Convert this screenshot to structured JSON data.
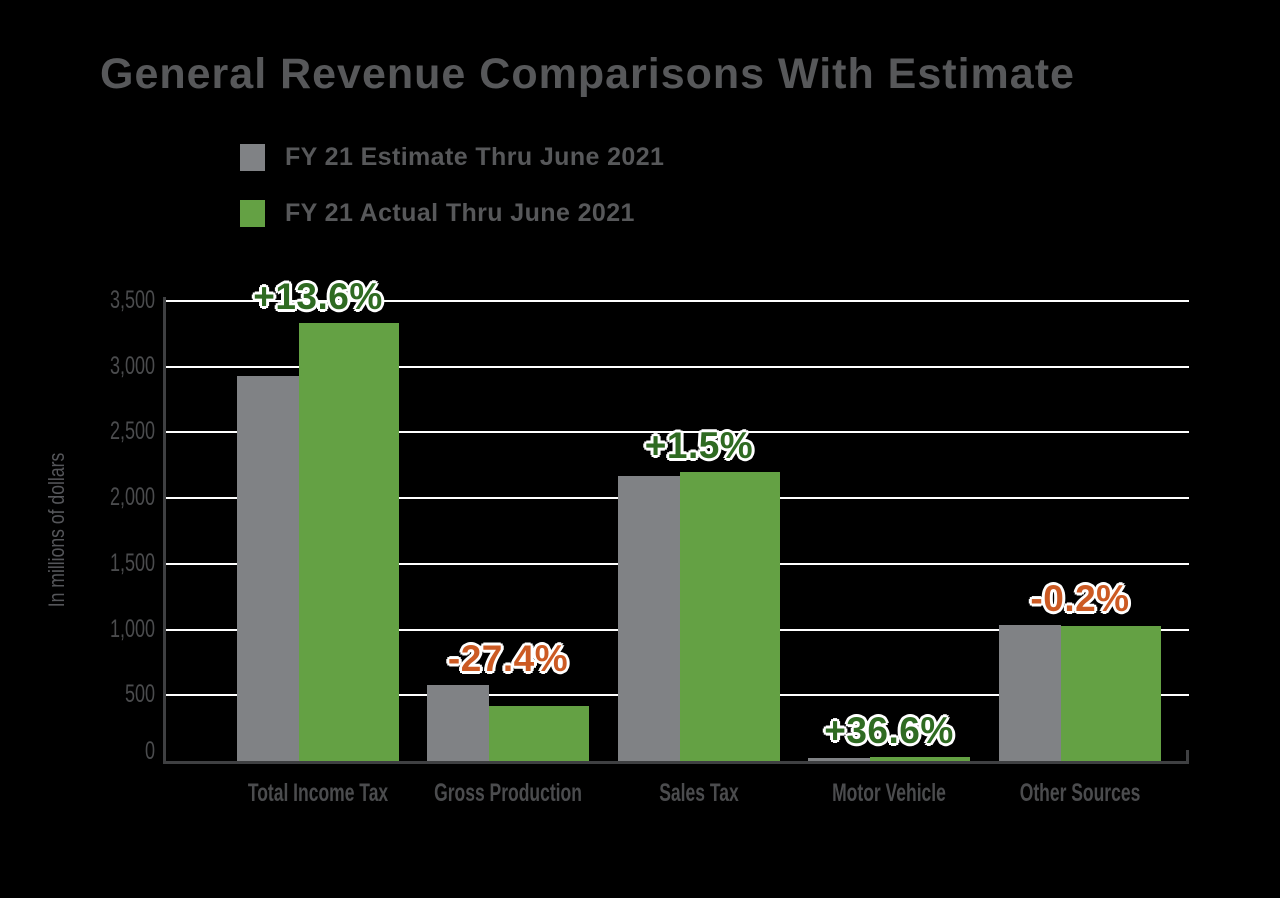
{
  "title": "General Revenue Comparisons With Estimate",
  "legend": [
    {
      "label": "FY 21 Estimate Thru June 2021",
      "color": "#808285"
    },
    {
      "label": "FY 21 Actual Thru June 2021",
      "color": "#64a144"
    }
  ],
  "chart_data": {
    "type": "bar",
    "title": "General Revenue Comparisons With Estimate",
    "xlabel": "",
    "ylabel": "In millions of dollars",
    "ylim": [
      0,
      3500
    ],
    "grid": true,
    "legend_position": "top-left",
    "background": "#000000",
    "gridline_color": "#ffffff",
    "axis_color": "#3f4042",
    "categories": [
      "Total Income Tax",
      "Gross Production",
      "Sales Tax",
      "Motor Vehicle",
      "Other Sources"
    ],
    "series": [
      {
        "name": "FY 21 Estimate Thru June 2021",
        "color": "#808285",
        "values": [
          2930,
          581,
          2167,
          25,
          1032
        ]
      },
      {
        "name": "FY 21 Actual Thru June 2021",
        "color": "#64a144",
        "values": [
          3330,
          422,
          2200,
          34,
          1030
        ]
      }
    ],
    "pct_labels": [
      {
        "text": "+13.6%",
        "color": "#2f6b22"
      },
      {
        "text": "-27.4%",
        "color": "#cc5a23"
      },
      {
        "text": "+1.5%",
        "color": "#2f6b22"
      },
      {
        "text": "+36.6%",
        "color": "#2f6b22"
      },
      {
        "text": "-0.2%",
        "color": "#cc5a23"
      }
    ],
    "y_ticks": [
      {
        "label": "3,500",
        "value": 3500
      },
      {
        "label": "3,000",
        "value": 3000
      },
      {
        "label": "2,500",
        "value": 2500
      },
      {
        "label": "2,000",
        "value": 2000
      },
      {
        "label": "1,500",
        "value": 1500
      },
      {
        "label": "1,000",
        "value": 1000
      },
      {
        "label": "500",
        "value": 500
      },
      {
        "label": "0",
        "value": 0
      }
    ]
  }
}
